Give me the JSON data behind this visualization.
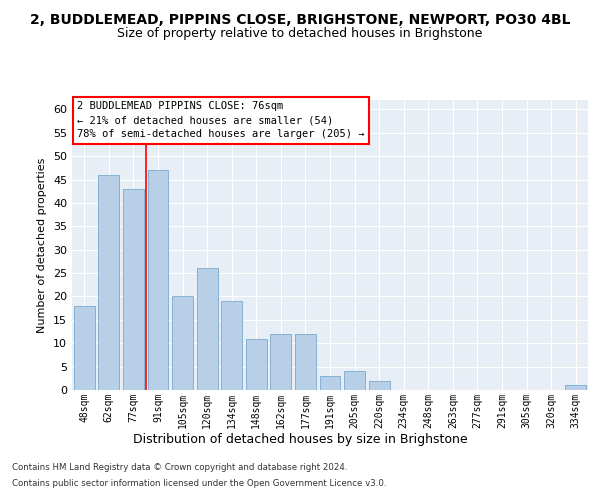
{
  "title": "2, BUDDLEMEAD, PIPPINS CLOSE, BRIGHSTONE, NEWPORT, PO30 4BL",
  "subtitle": "Size of property relative to detached houses in Brighstone",
  "xlabel": "Distribution of detached houses by size in Brighstone",
  "ylabel": "Number of detached properties",
  "categories": [
    "48sqm",
    "62sqm",
    "77sqm",
    "91sqm",
    "105sqm",
    "120sqm",
    "134sqm",
    "148sqm",
    "162sqm",
    "177sqm",
    "191sqm",
    "205sqm",
    "220sqm",
    "234sqm",
    "248sqm",
    "263sqm",
    "277sqm",
    "291sqm",
    "305sqm",
    "320sqm",
    "334sqm"
  ],
  "values": [
    18,
    46,
    43,
    47,
    20,
    26,
    19,
    11,
    12,
    12,
    3,
    4,
    2,
    0,
    0,
    0,
    0,
    0,
    0,
    0,
    1
  ],
  "bar_color": "#b8cfe8",
  "bar_edge_color": "#7aaace",
  "annotation_text": "2 BUDDLEMEAD PIPPINS CLOSE: 76sqm\n← 21% of detached houses are smaller (54)\n78% of semi-detached houses are larger (205) →",
  "annotation_box_color": "white",
  "annotation_box_edge_color": "red",
  "red_line_x": 2.5,
  "ylim": [
    0,
    62
  ],
  "yticks": [
    0,
    5,
    10,
    15,
    20,
    25,
    30,
    35,
    40,
    45,
    50,
    55,
    60
  ],
  "bg_color": "#e8eef5",
  "grid_color": "white",
  "footer_line1": "Contains HM Land Registry data © Crown copyright and database right 2024.",
  "footer_line2": "Contains public sector information licensed under the Open Government Licence v3.0.",
  "title_fontsize": 10,
  "subtitle_fontsize": 9,
  "ylabel_fontsize": 8,
  "xlabel_fontsize": 9
}
